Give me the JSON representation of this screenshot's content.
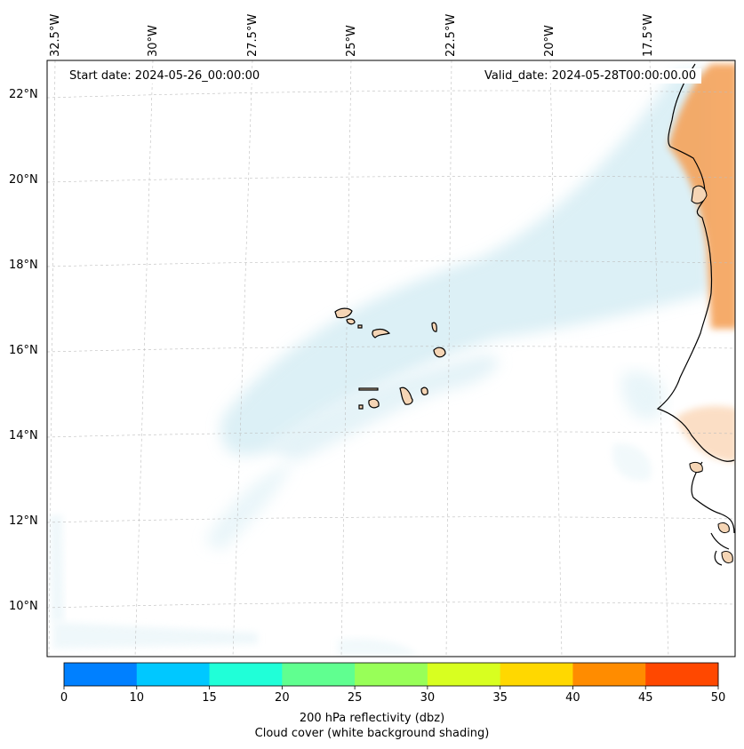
{
  "map": {
    "start_date": "Start date: 2024-05-26_00:00:00",
    "valid_date": "Valid_date: 2024-05-28T00:00:00.00",
    "lon_labels": [
      "32.5°W",
      "30°W",
      "27.5°W",
      "25°W",
      "22.5°W",
      "20°W",
      "17.5°W"
    ],
    "lat_labels": [
      "22°N",
      "20°N",
      "18°N",
      "16°N",
      "14°N",
      "12°N",
      "10°N"
    ],
    "land_color": "#f5d5b5",
    "reflectivity_land_color": "#f4a25a",
    "cloud_color": "#bfe3ee"
  },
  "colorbar": {
    "ticks": [
      "0",
      "10",
      "15",
      "20",
      "25",
      "30",
      "35",
      "40",
      "45",
      "50"
    ],
    "colors": [
      "#0080ff",
      "#00c8ff",
      "#20ffd8",
      "#60ff90",
      "#98ff58",
      "#d8ff20",
      "#ffd800",
      "#ff8c00",
      "#ff4800"
    ],
    "label_line1": "200 hPa reflectivity (dbz)",
    "label_line2": "Cloud cover (white background shading)"
  }
}
